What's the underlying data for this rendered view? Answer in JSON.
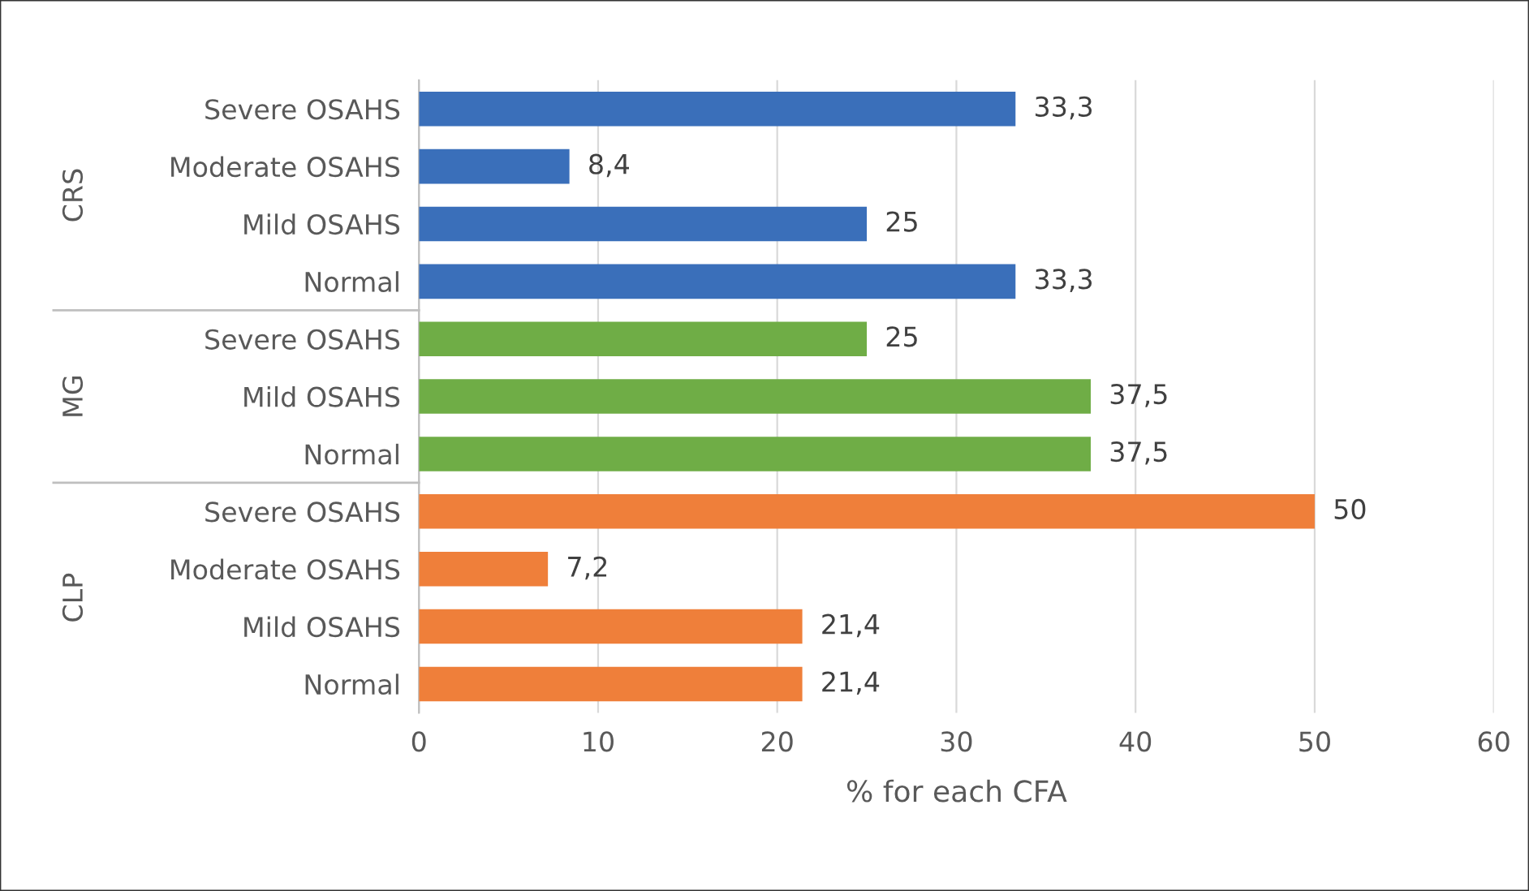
{
  "chart_data": {
    "type": "bar",
    "orientation": "horizontal",
    "categories": [
      "Severe OSAHS",
      "Moderate OSAHS",
      "Mild OSAHS",
      "Normal",
      "Severe OSAHS",
      "Mild OSAHS",
      "Normal",
      "Severe OSAHS",
      "Moderate OSAHS",
      "Mild OSAHS",
      "Normal"
    ],
    "series": [
      {
        "color": "#3a6fba",
        "values": [
          33.3,
          8.4,
          25,
          33.3,
          null,
          null,
          null,
          null,
          null,
          null,
          null
        ],
        "value_labels": [
          "33,3",
          "8,4",
          "25",
          "33,3",
          null,
          null,
          null,
          null,
          null,
          null,
          null
        ]
      },
      {
        "color": "#6fad46",
        "values": [
          null,
          null,
          null,
          null,
          25,
          37.5,
          37.5,
          null,
          null,
          null,
          null
        ],
        "value_labels": [
          null,
          null,
          null,
          null,
          "25",
          "37,5",
          "37,5",
          null,
          null,
          null,
          null
        ]
      },
      {
        "color": "#ef7f3a",
        "values": [
          null,
          null,
          null,
          null,
          null,
          null,
          null,
          50,
          7.2,
          21.4,
          21.4
        ],
        "value_labels": [
          null,
          null,
          null,
          null,
          null,
          null,
          null,
          "50",
          "7,2",
          "21,4",
          "21,4"
        ]
      }
    ],
    "annotations": [
      "CRS",
      "MG",
      "CLP"
    ],
    "xlabel": "% for each CFA",
    "xlim": [
      0,
      60
    ],
    "xticks": [
      0,
      10,
      20,
      30,
      40,
      50,
      60
    ],
    "grid": "x"
  }
}
